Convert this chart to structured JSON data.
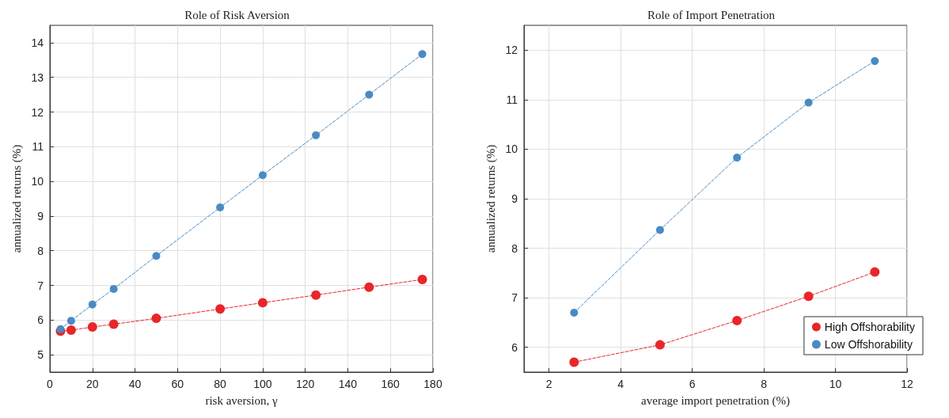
{
  "chart_data": [
    {
      "type": "line",
      "title": "Role of Risk Aversion",
      "xlabel": "risk aversion, γ",
      "ylabel": "annualized returns (%)",
      "marker": "circle",
      "line_style": "dashed",
      "grid": true,
      "legend": false,
      "xlim": [
        0,
        180
      ],
      "xticks": [
        0,
        20,
        40,
        60,
        80,
        100,
        120,
        140,
        160,
        180
      ],
      "ylim": [
        4.5,
        14.5
      ],
      "yticks": [
        5,
        6,
        7,
        8,
        9,
        10,
        11,
        12,
        13,
        14
      ],
      "x": [
        5,
        10,
        20,
        30,
        50,
        80,
        100,
        125,
        150,
        175
      ],
      "series": [
        {
          "color": "#e8262a",
          "values": [
            5.68,
            5.71,
            5.8,
            5.88,
            6.05,
            6.32,
            6.5,
            6.72,
            6.95,
            7.17
          ]
        },
        {
          "color": "#4a8ac4",
          "values": [
            5.74,
            5.98,
            6.45,
            6.9,
            7.85,
            9.25,
            10.18,
            11.33,
            12.5,
            13.67
          ]
        }
      ]
    },
    {
      "type": "line",
      "title": "Role of Import Penetration",
      "xlabel": "average import penetration (%)",
      "ylabel": "annualized returns (%)",
      "marker": "circle",
      "line_style": "dashed",
      "grid": true,
      "legend": "bottom right",
      "xlim": [
        1.3,
        12
      ],
      "xticks": [
        2,
        4,
        6,
        8,
        10,
        12
      ],
      "ylim": [
        5.5,
        12.5
      ],
      "yticks": [
        6,
        7,
        8,
        9,
        10,
        11,
        12
      ],
      "x": [
        2.7,
        5.1,
        7.25,
        9.25,
        11.1
      ],
      "series": [
        {
          "name": "High Offshorability",
          "color": "#e8262a",
          "values": [
            5.7,
            6.05,
            6.54,
            7.03,
            7.52
          ]
        },
        {
          "name": "Low Offshorability",
          "color": "#4a8ac4",
          "values": [
            6.7,
            8.37,
            9.83,
            10.94,
            11.78
          ]
        }
      ]
    }
  ]
}
